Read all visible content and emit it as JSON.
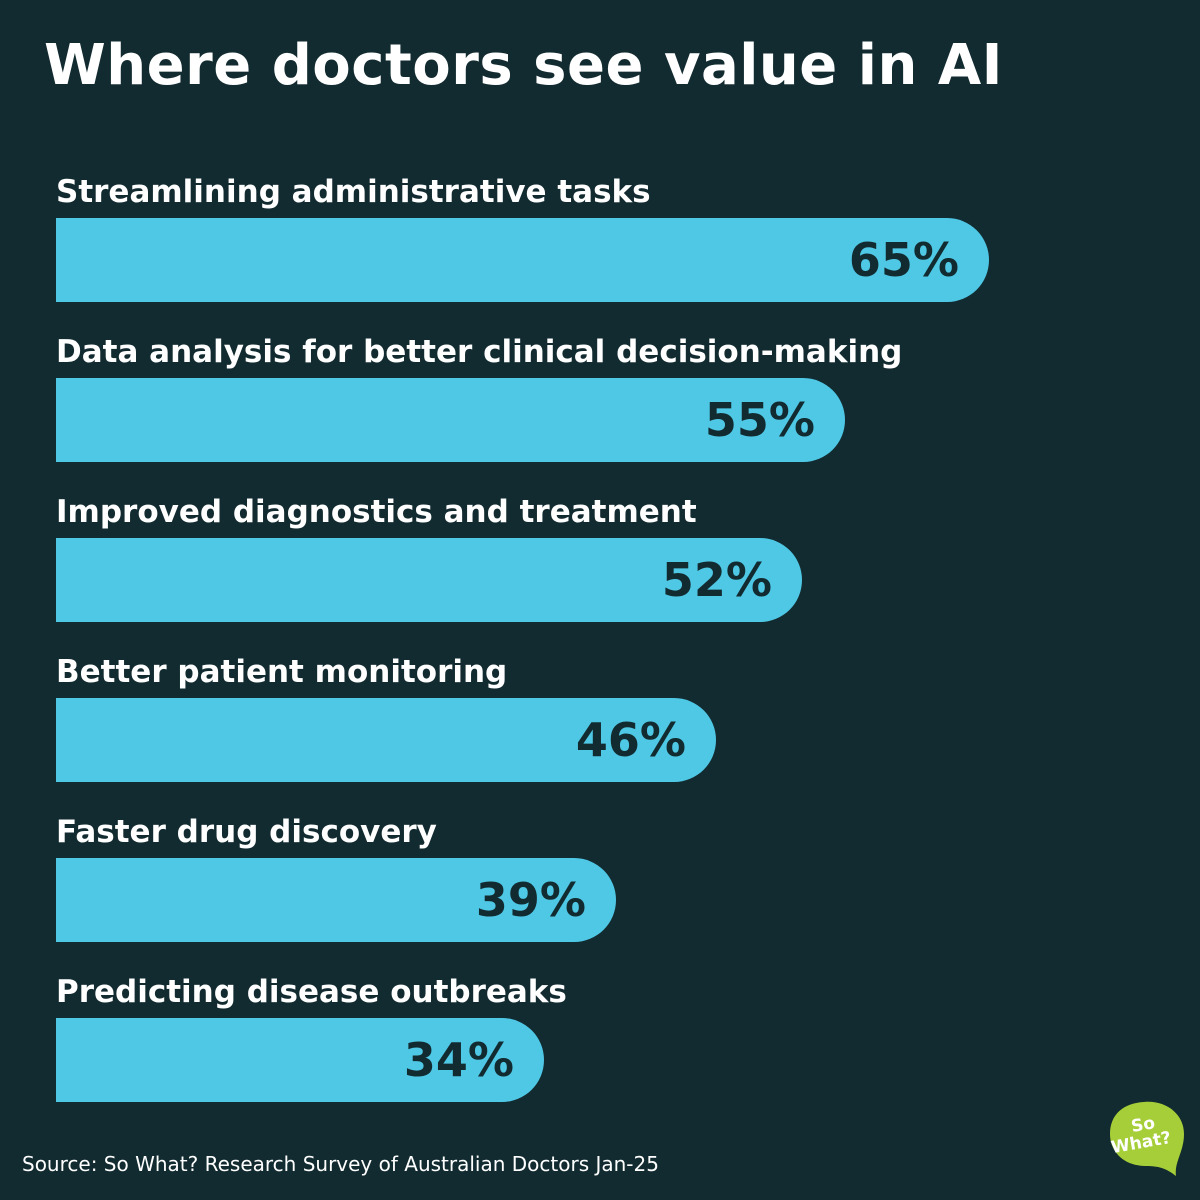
{
  "chart_data": {
    "type": "bar",
    "orientation": "horizontal",
    "title": "Where doctors see value in AI",
    "categories": [
      "Streamlining administrative tasks",
      "Data analysis for better clinical decision-making",
      "Improved diagnostics and treatment",
      "Better patient monitoring",
      "Faster drug discovery",
      "Predicting disease outbreaks"
    ],
    "values": [
      65,
      55,
      52,
      46,
      39,
      34
    ],
    "value_labels": [
      "65%",
      "55%",
      "52%",
      "46%",
      "39%",
      "34%"
    ],
    "unit": "%",
    "grid": false,
    "bar_color": "#4fc8e6",
    "background_color": "#122b30",
    "value_label_color": "#122b30",
    "label_color": "#ffffff"
  },
  "source": "Source: So What? Research Survey of Australian Doctors Jan-25",
  "logo": {
    "icon": "so-what-speech-bubble-logo",
    "text": "So What?",
    "color": "#a6ce39"
  }
}
